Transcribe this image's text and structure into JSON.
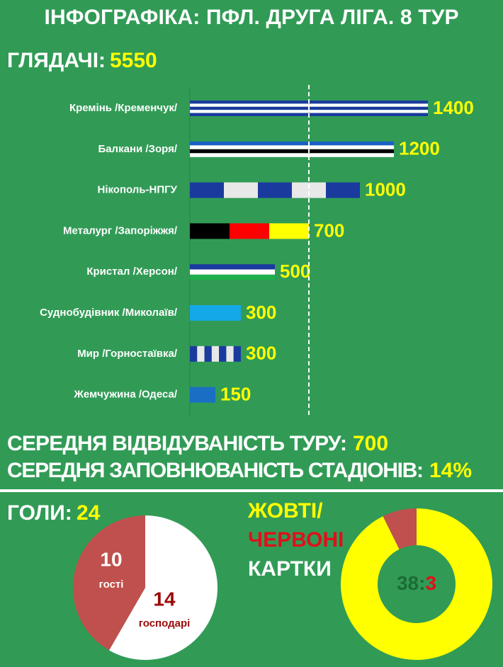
{
  "title": "ІНФОГРАФІКА: ПФЛ. ДРУГА ЛІГА. 8 ТУР",
  "chart_data": [
    {
      "type": "bar",
      "orientation": "horizontal",
      "title": "ГЛЯДАЧІ:",
      "total": 5550,
      "categories": [
        "Кремінь /Кременчук/",
        "Балкани /Зоря/",
        "Нікополь-НПГУ",
        "Металург /Запоріжжя/",
        "Кристал /Херсон/",
        "Суднобудівник /Миколаїв/",
        "Мир /Горностаївка/",
        "Жемчужина /Одеса/"
      ],
      "values": [
        1400,
        1200,
        1000,
        700,
        500,
        300,
        300,
        150
      ],
      "patterns": [
        {
          "direction": "h",
          "colors": [
            "#1a3a9e",
            "#ffffff",
            "#1a3a9e",
            "#ffffff",
            "#1a3a9e"
          ]
        },
        {
          "direction": "h",
          "colors": [
            "#1a5fc4",
            "#ffffff",
            "#000000",
            "#ffffff"
          ]
        },
        {
          "direction": "v",
          "colors": [
            "#1a3a9e",
            "#e8e8e8",
            "#1a3a9e",
            "#e8e8e8",
            "#1a3a9e"
          ]
        },
        {
          "direction": "v",
          "colors": [
            "#000000",
            "#ff0000",
            "#ffff00"
          ]
        },
        {
          "direction": "h",
          "colors": [
            "#1a3a9e",
            "#ffffff",
            "#1fae4b"
          ]
        },
        {
          "direction": "h",
          "colors": [
            "#14a8e8"
          ]
        },
        {
          "direction": "v",
          "colors": [
            "#1a3a9e",
            "#e8e8e8",
            "#1a3a9e",
            "#e8e8e8",
            "#1a3a9e",
            "#e8e8e8",
            "#1a3a9e"
          ]
        },
        {
          "direction": "h",
          "colors": [
            "#1a6fc4"
          ]
        }
      ],
      "xlim": [
        0,
        1400
      ]
    },
    {
      "type": "pie",
      "title": "ГОЛИ:",
      "total": 24,
      "slices": [
        {
          "name": "гості",
          "value": 10,
          "color": "#c0504d",
          "label_color": "#ffffff"
        },
        {
          "name": "господарі",
          "value": 14,
          "color": "#ffffff",
          "label_color": "#9b0a0a"
        }
      ]
    },
    {
      "type": "donut",
      "title": [
        "ЖОВТІ/",
        "ЧЕРВОНІ",
        "КАРТКИ"
      ],
      "title_colors": [
        "#ffff00",
        "#e0101a",
        "#ffffff"
      ],
      "slices": [
        {
          "value": 38,
          "color": "#ffff00",
          "label_color": "#1c6b35"
        },
        {
          "value": 3,
          "color": "#c0504d",
          "label_color": "#e0101a"
        }
      ],
      "separator": ":"
    }
  ],
  "stats": [
    {
      "label": "СЕРЕДНЯ ВІДВІДУВАНІСТЬ ТУРУ:",
      "value": 700
    },
    {
      "label": "СЕРЕДНЯ ЗАПОВНЮВАНІСТЬ СТАДІОНІВ:",
      "value": "14%"
    }
  ]
}
